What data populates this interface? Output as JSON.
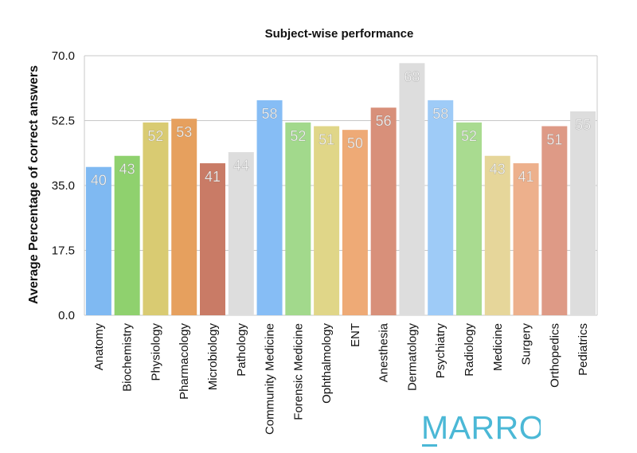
{
  "chart_data": {
    "type": "bar",
    "title": "Subject-wise performance",
    "ylabel": "Average Percentage of correct answers",
    "xlabel": "",
    "ylim": [
      0,
      70
    ],
    "yticks": [
      "0.0",
      "17.5",
      "35.0",
      "52.5",
      "70.0"
    ],
    "grid": true,
    "categories": [
      "Anatomy",
      "Biochemistry",
      "Physiology",
      "Pharmacology",
      "Microbiology",
      "Pathology",
      "Community Medicine",
      "Forensic Medicine",
      "Ophthalmology",
      "ENT",
      "Anesthesia",
      "Dermatology",
      "Psychiatry",
      "Radiology",
      "Medicine",
      "Surgery",
      "Orthopedics",
      "Pediatrics"
    ],
    "values": [
      40,
      43,
      52,
      53,
      41,
      44,
      58,
      52,
      51,
      50,
      56,
      68,
      58,
      52,
      43,
      41,
      51,
      55
    ],
    "colors": [
      "#7FB9F2",
      "#8FD16E",
      "#D9CB72",
      "#E6A05E",
      "#C97B66",
      "#DDDDDD",
      "#86BDF5",
      "#A2D98C",
      "#E0D688",
      "#EEAA76",
      "#D8907A",
      "#DDDDDD",
      "#9ECBF7",
      "#A9DB90",
      "#E6D69A",
      "#EDB08C",
      "#DE9A86",
      "#DDDDDD"
    ]
  },
  "logo": {
    "text": "MARROW",
    "color": "#4BB8D6"
  }
}
